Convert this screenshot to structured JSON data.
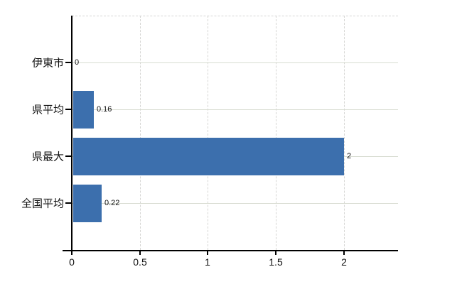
{
  "chart_data": {
    "type": "bar",
    "orientation": "horizontal",
    "title": "",
    "xlabel": "",
    "ylabel": "",
    "categories": [
      "伊東市",
      "県平均",
      "県最大",
      "全国平均"
    ],
    "values": [
      0,
      0.16,
      2,
      0.22
    ],
    "value_labels": [
      "0",
      "0.16",
      "2",
      "0.22"
    ],
    "x_ticks": [
      0,
      0.5,
      1,
      1.5,
      2
    ],
    "x_tick_labels": [
      "0",
      "0.5",
      "1",
      "1.5",
      "2"
    ],
    "xlim": [
      0,
      2.4
    ],
    "grid": true,
    "legend": false,
    "colors": {
      "bar": "#3c6fad",
      "row_gridline": "#d8dcd2",
      "dashed_gridline": "#d6d6d4",
      "axis": "#000000",
      "text": "#111111"
    }
  }
}
